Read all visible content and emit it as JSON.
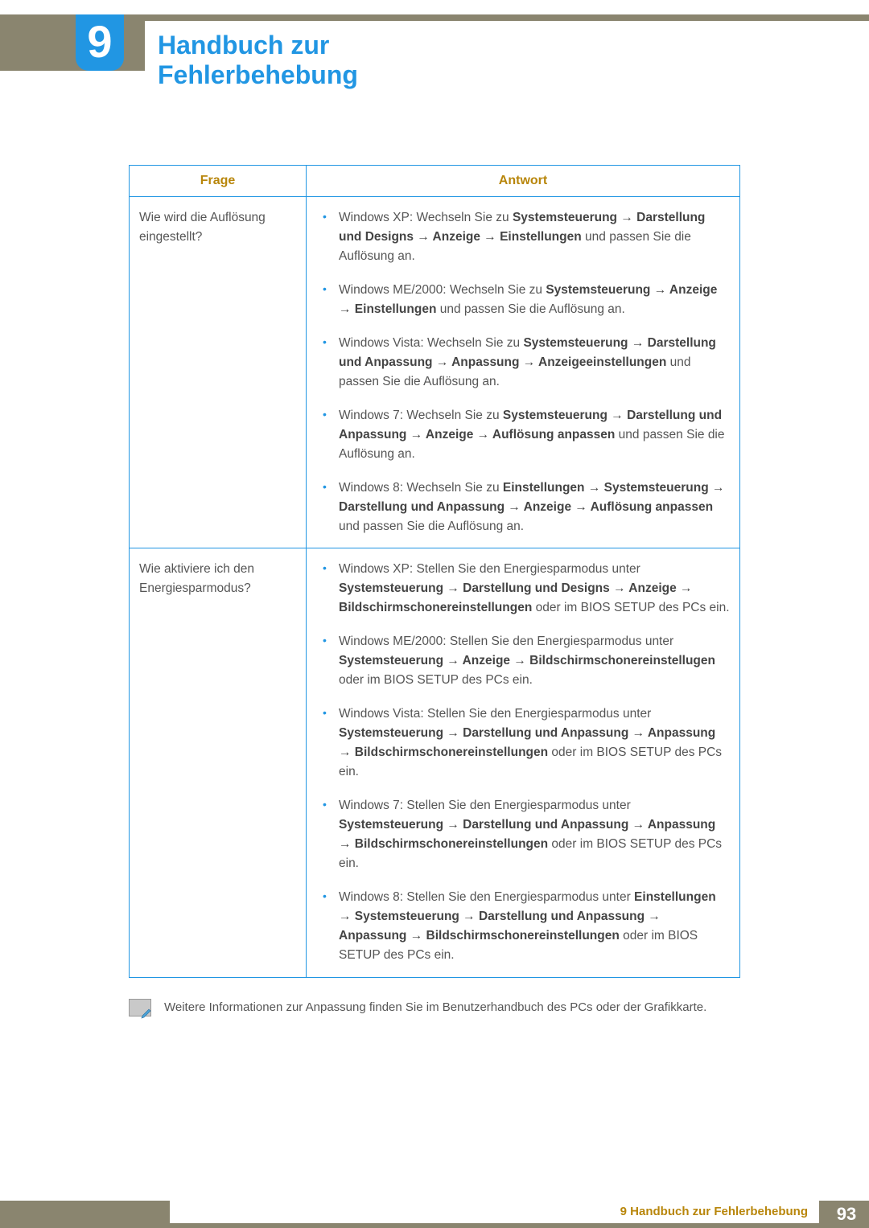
{
  "chapter": {
    "number": "9",
    "title": "Handbuch zur Fehlerbehebung"
  },
  "colors": {
    "accent": "#2196e3",
    "header_bar": "#8a856f",
    "heading_text": "#b8860b",
    "body_text": "#555555"
  },
  "table": {
    "headers": {
      "question": "Frage",
      "answer": "Antwort"
    },
    "rows": [
      {
        "question": "Wie wird die Auflösung eingestellt?",
        "answers": [
          [
            {
              "t": "Windows XP: Wechseln Sie zu "
            },
            {
              "t": "Systemsteuerung → Darstellung und Designs → Anzeige → Einstellungen",
              "b": true
            },
            {
              "t": " und passen Sie die Auflösung an."
            }
          ],
          [
            {
              "t": "Windows ME/2000: Wechseln Sie zu "
            },
            {
              "t": "Systemsteuerung → Anzeige → Einstellungen",
              "b": true
            },
            {
              "t": " und passen Sie die Auflösung an."
            }
          ],
          [
            {
              "t": "Windows Vista: Wechseln Sie zu "
            },
            {
              "t": "Systemsteuerung → Darstellung und Anpassung → Anpassung → Anzeigeeinstellungen",
              "b": true
            },
            {
              "t": " und passen Sie die Auflösung an."
            }
          ],
          [
            {
              "t": "Windows 7: Wechseln Sie zu "
            },
            {
              "t": "Systemsteuerung → Darstellung und Anpassung → Anzeige → Auflösung anpassen",
              "b": true
            },
            {
              "t": " und passen Sie die Auflösung an."
            }
          ],
          [
            {
              "t": "Windows 8: Wechseln Sie zu "
            },
            {
              "t": "Einstellungen → Systemsteuerung → Darstellung und Anpassung → Anzeige → Auflösung anpassen",
              "b": true
            },
            {
              "t": " und passen Sie die Auflösung an."
            }
          ]
        ]
      },
      {
        "question": "Wie aktiviere ich den Energiesparmodus?",
        "answers": [
          [
            {
              "t": "Windows XP: Stellen Sie den Energiesparmodus unter "
            },
            {
              "t": "Systemsteuerung → Darstellung und Designs → Anzeige → Bildschirmschonereinstellungen",
              "b": true
            },
            {
              "t": " oder im BIOS SETUP des PCs ein."
            }
          ],
          [
            {
              "t": "Windows ME/2000: Stellen Sie den Energiesparmodus unter "
            },
            {
              "t": "Systemsteuerung → Anzeige → Bildschirmschonereinstellugen",
              "b": true
            },
            {
              "t": " oder im BIOS SETUP des PCs ein."
            }
          ],
          [
            {
              "t": "Windows Vista: Stellen Sie den Energiesparmodus unter "
            },
            {
              "t": "Systemsteuerung → Darstellung und Anpassung → Anpassung → Bildschirmschonereinstellungen",
              "b": true
            },
            {
              "t": " oder im BIOS SETUP des PCs ein."
            }
          ],
          [
            {
              "t": "Windows 7: Stellen Sie den Energiesparmodus unter "
            },
            {
              "t": "Systemsteuerung → Darstellung und Anpassung → Anpassung → Bildschirmschonereinstellungen",
              "b": true
            },
            {
              "t": " oder im BIOS SETUP des PCs ein."
            }
          ],
          [
            {
              "t": "Windows 8: Stellen Sie den Energiesparmodus unter "
            },
            {
              "t": "Einstellungen → Systemsteuerung → Darstellung und Anpassung → Anpassung → Bildschirmschonereinstellungen",
              "b": true
            },
            {
              "t": " oder im BIOS SETUP des PCs ein."
            }
          ]
        ]
      }
    ]
  },
  "note": "Weitere Informationen zur Anpassung finden Sie im Benutzerhandbuch des PCs oder der Grafikkarte.",
  "footer": {
    "label": "9 Handbuch zur Fehlerbehebung",
    "page": "93"
  }
}
